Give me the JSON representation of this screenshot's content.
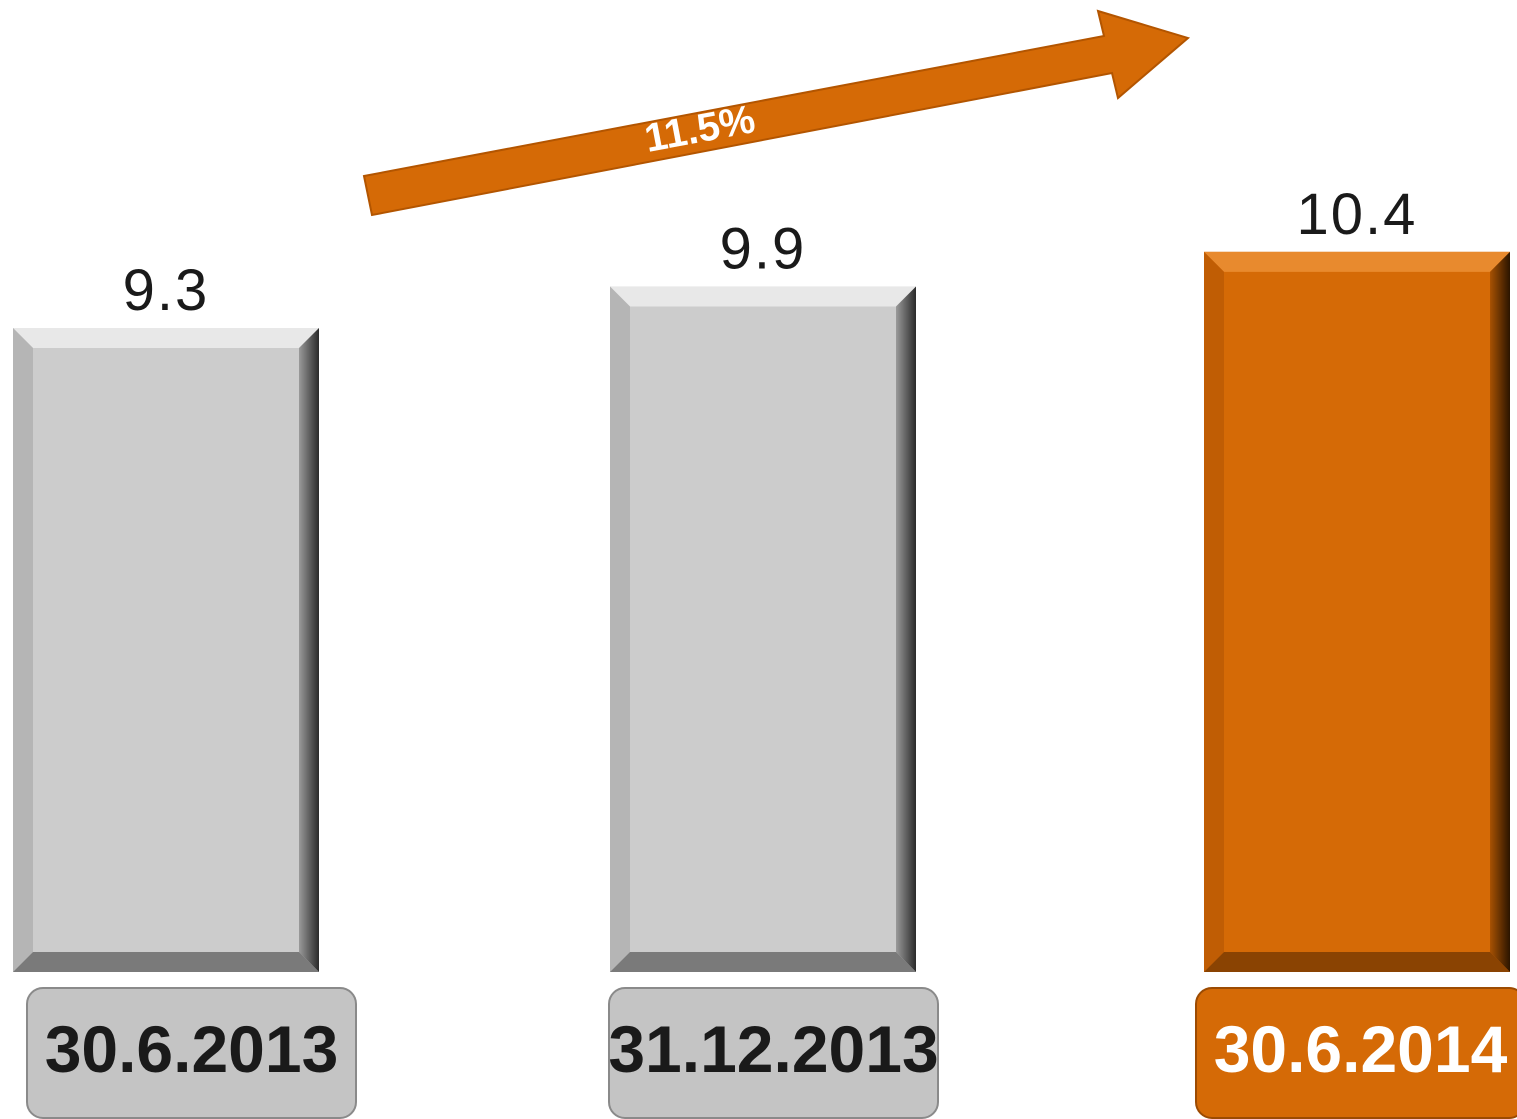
{
  "chart_data": {
    "type": "bar",
    "categories": [
      "30.6.2013",
      "31.12.2013",
      "30.6.2014"
    ],
    "values": [
      9.3,
      9.9,
      10.4
    ],
    "value_labels": [
      "9.3",
      "9.9",
      "10.4"
    ],
    "highlight_index": 2,
    "growth_annotation": "11.5%",
    "title": "",
    "xlabel": "",
    "ylabel": "",
    "grid": false,
    "legend": "none"
  },
  "colors": {
    "bar_default": "#cccccc",
    "bar_highlight": "#d56a06",
    "label_box_default": "#c4c4c4",
    "label_box_highlight": "#d56a06",
    "label_text_default": "#1a1a1a",
    "label_text_highlight": "#ffffff",
    "arrow": "#d56a06",
    "value_text": "#1a1a1a"
  }
}
